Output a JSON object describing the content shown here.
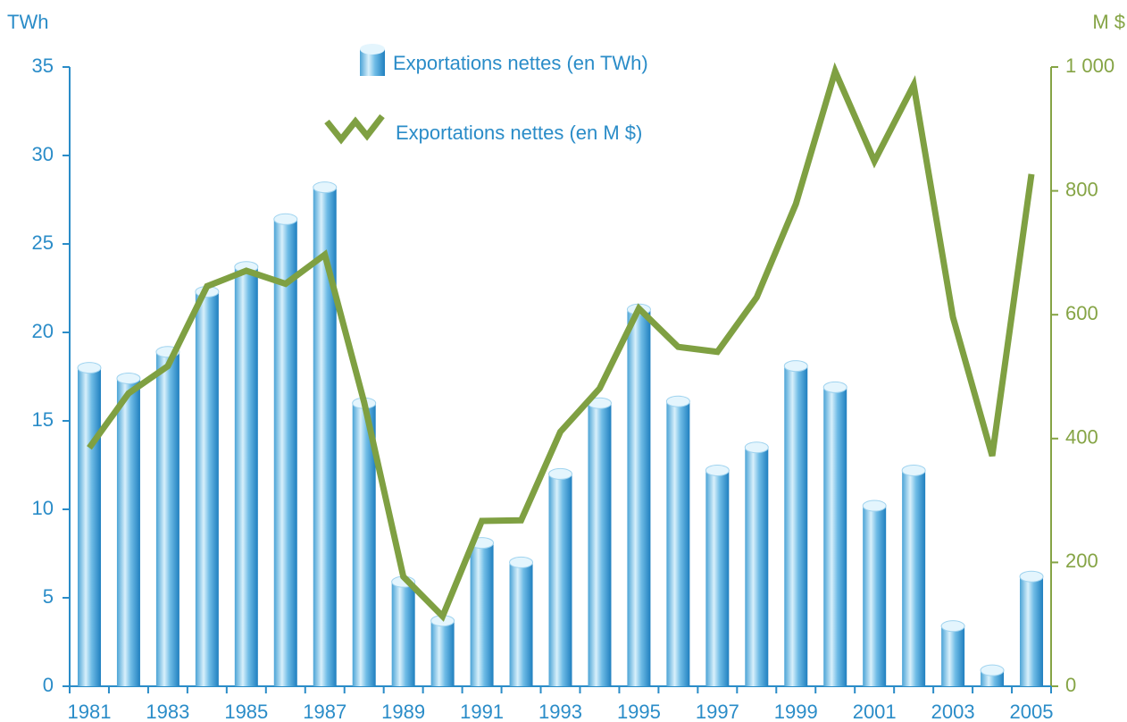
{
  "chart_data": {
    "type": "bar_line",
    "y_label": "TWh",
    "y2_label": "M $",
    "categories": [
      "1981",
      null,
      "1983",
      null,
      "1985",
      null,
      "1987",
      null,
      "1989",
      null,
      "1991",
      null,
      "1993",
      null,
      "1995",
      null,
      "1997",
      null,
      "1999",
      null,
      "2001",
      null,
      "2003",
      null,
      "2005"
    ],
    "series": [
      {
        "name": "Exportations nettes (en TWh)",
        "type": "bar",
        "axis": "y",
        "color": "#2a8cc8",
        "values": [
          18,
          17.4,
          18.9,
          22.3,
          23.7,
          26.4,
          28.2,
          16,
          5.9,
          3.7,
          8.1,
          7,
          12,
          16,
          21.3,
          16.1,
          12.2,
          13.5,
          18.1,
          16.9,
          10.2,
          12.2,
          3.4,
          0.9,
          6.2
        ]
      },
      {
        "name": "Exportations nettes (en M $)",
        "type": "line",
        "axis": "y2",
        "color": "#7fa042",
        "values": [
          385,
          473,
          517,
          646,
          671,
          650,
          697,
          459,
          177,
          113,
          267,
          268,
          411,
          481,
          610,
          548,
          540,
          628,
          779,
          993,
          848,
          971,
          596,
          372,
          827
        ]
      }
    ],
    "ylim": [
      0,
      35
    ],
    "yticks": [
      0,
      5,
      10,
      15,
      20,
      25,
      30,
      35
    ],
    "y2lim": [
      0,
      1000
    ],
    "y2ticks": [
      0,
      200,
      400,
      600,
      800,
      {
        "value": 1000,
        "label": "1 000"
      }
    ]
  }
}
